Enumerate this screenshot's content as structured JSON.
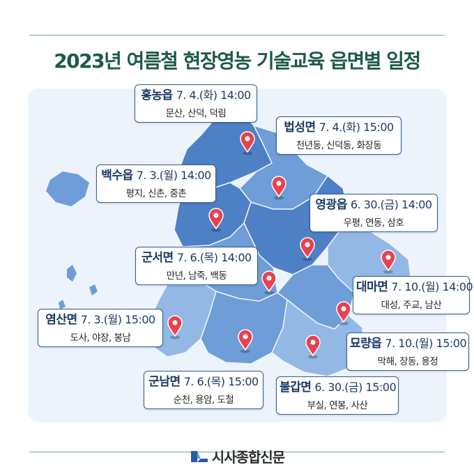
{
  "title": "2023년 여름철 현장영농 기술교육 읍면별 일정",
  "footer": {
    "brand": "시사종합신문",
    "logo_icon": "newspaper-logo-icon"
  },
  "colors": {
    "title": "#1c5a48",
    "region_dark": "#4e80c6",
    "region_mid": "#6f9dd8",
    "region_light": "#93b8e6",
    "pin": "#e8424f",
    "label_border": "#2f5d97"
  },
  "locations": [
    {
      "name": "홍농읍",
      "date": "7. 4.(화)",
      "time": "14:00",
      "villages": "문산, 산덕, 덕림"
    },
    {
      "name": "법성면",
      "date": "7. 4.(화)",
      "time": "15:00",
      "villages": "천년동, 신덕동, 화장동"
    },
    {
      "name": "백수읍",
      "date": "7. 3.(월)",
      "time": "14:00",
      "villages": "평지, 신촌, 중촌"
    },
    {
      "name": "영광읍",
      "date": "6. 30.(금)",
      "time": "14:00",
      "villages": "우평, 연동, 삼호"
    },
    {
      "name": "군서면",
      "date": "7. 6.(목)",
      "time": "14:00",
      "villages": "만년, 남죽, 백동"
    },
    {
      "name": "대마면",
      "date": "7. 10.(월)",
      "time": "14:00",
      "villages": "대성, 주교, 남산"
    },
    {
      "name": "염산면",
      "date": "7. 3.(월)",
      "time": "15:00",
      "villages": "도사, 야장, 봉남"
    },
    {
      "name": "묘량읍",
      "date": "7. 10.(월)",
      "time": "15:00",
      "villages": "막해, 장동, 용정"
    },
    {
      "name": "군남면",
      "date": "7. 6.(목)",
      "time": "15:00",
      "villages": "순천, 용암, 도철"
    },
    {
      "name": "불갑면",
      "date": "6. 30.(금)",
      "time": "15:00",
      "villages": "부실, 연봉, 사산"
    }
  ]
}
